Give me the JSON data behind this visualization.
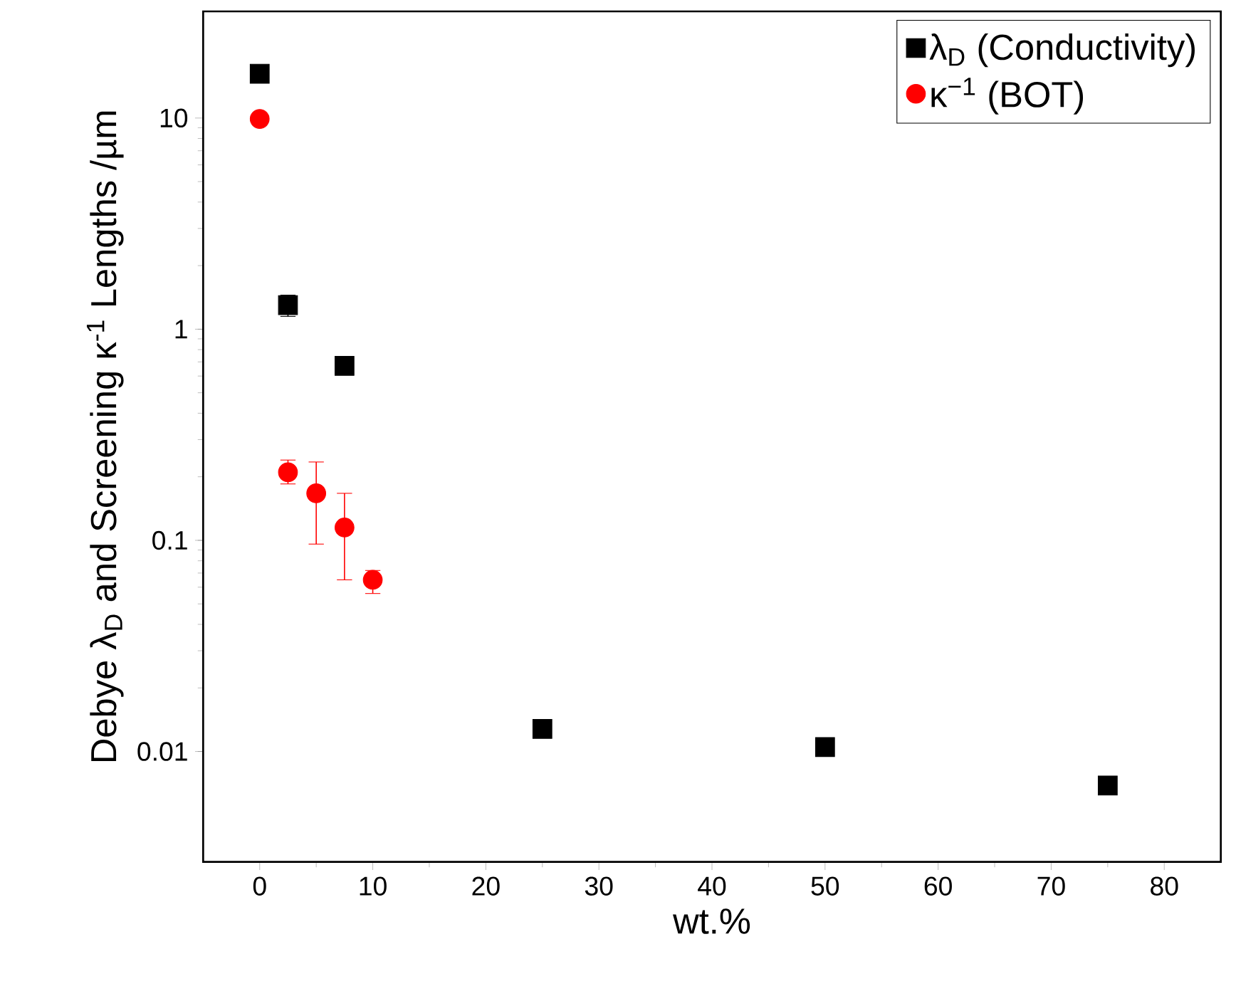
{
  "chart_data": {
    "type": "scatter",
    "xlabel": "wt.%",
    "ylabel": "Debye λ$_{D}$ and Screening κ$^{-1}$ Lengths /µm",
    "log": "y",
    "xlim": [
      -5,
      85
    ],
    "ylim": [
      0.003,
      32
    ],
    "xticks": [
      0,
      10,
      20,
      30,
      40,
      50,
      60,
      70,
      80
    ],
    "yticks": [
      0.01,
      0.1,
      1,
      10
    ],
    "legend": "top right",
    "grid": false,
    "series": [
      {
        "name": "λ$_{D}$ (Conductivity)",
        "color": "#000000",
        "marker": "square",
        "x": [
          0,
          2.5,
          7.5,
          25,
          50,
          75
        ],
        "values": [
          16.2,
          1.3,
          0.67,
          0.0128,
          0.0105,
          0.0069
        ],
        "errors": [
          null,
          [
            1.15,
            1.45
          ],
          null,
          null,
          null,
          null
        ]
      },
      {
        "name": "κ$^{−1}$ (BOT)",
        "color": "#ff0000",
        "marker": "circle",
        "x": [
          0,
          2.5,
          5,
          7.5,
          10
        ],
        "values": [
          9.9,
          0.21,
          0.167,
          0.115,
          0.065
        ],
        "errors": [
          null,
          [
            0.185,
            0.24
          ],
          [
            0.096,
            0.235
          ],
          [
            0.065,
            0.167
          ],
          [
            0.056,
            0.072
          ]
        ]
      }
    ]
  }
}
